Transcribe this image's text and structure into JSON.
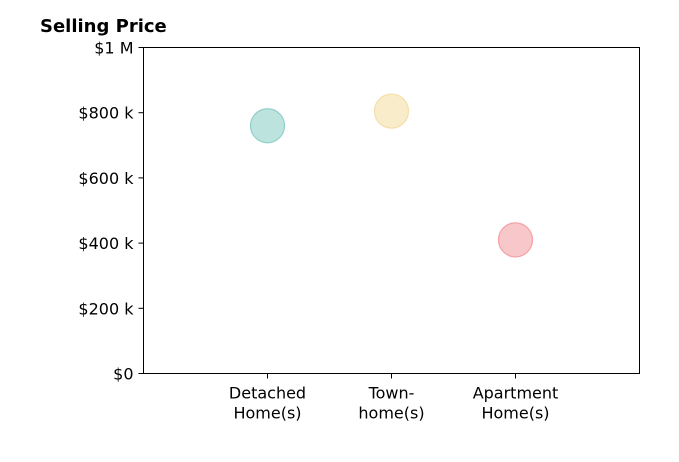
{
  "chart_data": {
    "type": "scatter",
    "title": "Selling Price",
    "xlabel": "",
    "ylabel": "",
    "categories": [
      [
        "Detached",
        "Home(s)"
      ],
      [
        "Town-",
        "home(s)"
      ],
      [
        "Apartment",
        "Home(s)"
      ]
    ],
    "values": [
      760000,
      805000,
      410000
    ],
    "ylim": [
      0,
      1000000
    ],
    "yticks": [
      {
        "value": 0,
        "label": "$0"
      },
      {
        "value": 200000,
        "label": "$200 k"
      },
      {
        "value": 400000,
        "label": "$400 k"
      },
      {
        "value": 600000,
        "label": "$600 k"
      },
      {
        "value": 800000,
        "label": "$800 k"
      },
      {
        "value": 1000000,
        "label": "$1 M"
      }
    ],
    "colors": [
      "#8fd0c8",
      "#f5dfa8",
      "#f4a2a6"
    ],
    "grid": false,
    "legend": "none"
  }
}
